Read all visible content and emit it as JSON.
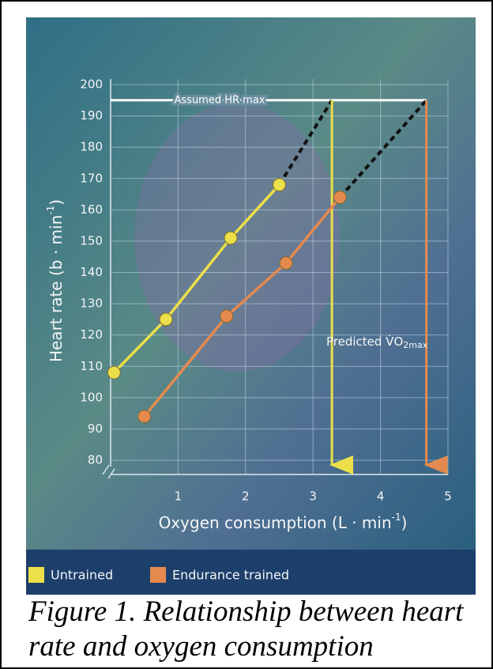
{
  "chart_data": {
    "type": "line",
    "y_label": {
      "text": "Heart rate (b · min",
      "superscript": "-1",
      "end": ")"
    },
    "x_label": {
      "text": "Oxygen consumption (L · min",
      "superscript": "-1",
      "end": ")"
    },
    "xlim": [
      0,
      5
    ],
    "xticks": [
      1,
      2,
      3,
      4,
      5
    ],
    "ylim": [
      80,
      200
    ],
    "yticks": [
      80,
      90,
      100,
      110,
      120,
      130,
      140,
      150,
      160,
      170,
      180,
      190,
      200
    ],
    "grid": true,
    "hr_max": 195,
    "hr_max_label": "Assumed HR max",
    "predicted_label": {
      "text": "Predicted V̇O",
      "subscript": "2max"
    },
    "series": [
      {
        "name": "Untrained",
        "color": "#ece04a",
        "x": [
          0.05,
          0.82,
          1.78,
          2.5
        ],
        "values": [
          108,
          125,
          151,
          168
        ],
        "predicted_vo2max": 3.28
      },
      {
        "name": "Endurance trained",
        "color": "#e58a4e",
        "x": [
          0.5,
          1.72,
          2.6,
          3.4
        ],
        "values": [
          94,
          126,
          143,
          164
        ],
        "predicted_vo2max": 4.68
      }
    ],
    "caption": "Figure 1. Relationship between heart rate and oxygen consumption"
  }
}
